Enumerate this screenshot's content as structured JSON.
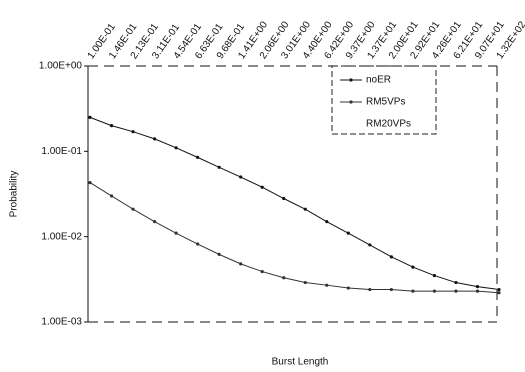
{
  "chart_data": {
    "type": "line",
    "x_label": "Burst Length",
    "y_label": "Probability",
    "categories": [
      "1.00E-01",
      "1.46E-01",
      "2.13E-01",
      "3.11E-01",
      "4.54E-01",
      "6.63E-01",
      "9.68E-01",
      "1.41E+00",
      "2.06E+00",
      "3.01E+00",
      "4.40E+00",
      "6.42E+00",
      "9.37E+00",
      "1.37E+01",
      "2.00E+01",
      "2.92E+01",
      "4.26E+01",
      "6.21E+01",
      "9.07E+01",
      "1.32E+02"
    ],
    "series": [
      {
        "name": "noER",
        "color": "#111111",
        "values": [
          0.25,
          0.2,
          0.17,
          0.14,
          0.11,
          0.085,
          0.065,
          0.05,
          0.038,
          0.028,
          0.021,
          0.015,
          0.011,
          0.008,
          0.0058,
          0.0044,
          0.0035,
          0.0029,
          0.0026,
          0.0024
        ]
      },
      {
        "name": "RM5VPs",
        "color": "#333333",
        "values": [
          0.043,
          0.03,
          0.021,
          0.015,
          0.011,
          0.0082,
          0.0062,
          0.0048,
          0.0039,
          0.0033,
          0.0029,
          0.0027,
          0.0025,
          0.0024,
          0.0024,
          0.0023,
          0.0023,
          0.0023,
          0.0023,
          0.0022
        ]
      },
      {
        "name": "RM20VPs",
        "color": "#555555",
        "values": [
          null,
          null,
          null,
          null,
          null,
          null,
          null,
          null,
          null,
          null,
          null,
          null,
          null,
          null,
          null,
          null,
          null,
          null,
          null,
          null
        ]
      }
    ],
    "ylim": [
      0.001,
      1
    ],
    "log_y": true,
    "yticks": [
      {
        "value": 0.001,
        "label": "1.00E-03"
      },
      {
        "value": 0.01,
        "label": "1.00E-02"
      },
      {
        "value": 0.1,
        "label": "1.00E-01"
      },
      {
        "value": 1,
        "label": "1.00E+00"
      }
    ]
  }
}
